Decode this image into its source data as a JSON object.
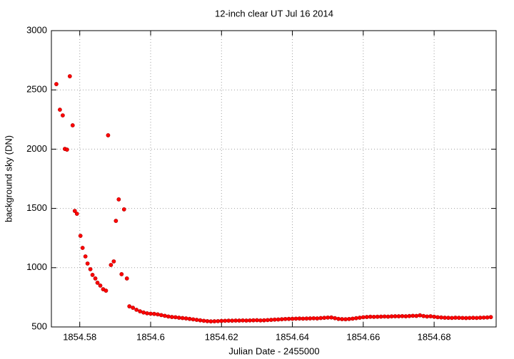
{
  "chart_data": {
    "type": "scatter",
    "title": "12-inch clear UT Jul 16 2014",
    "xlabel": "Julian Date - 2455000",
    "ylabel": "background sky (DN)",
    "color": "#ff0000",
    "grid": true,
    "xlim": [
      1854.572,
      1854.6975
    ],
    "ylim": [
      500,
      3000
    ],
    "xticks": [
      1854.58,
      1854.6,
      1854.62,
      1854.64,
      1854.66,
      1854.68
    ],
    "yticks": [
      500,
      1000,
      1500,
      2000,
      2500,
      3000
    ],
    "x": [
      1854.5734,
      1854.5744,
      1854.5752,
      1854.5758,
      1854.5764,
      1854.5772,
      1854.578,
      1854.5786,
      1854.5792,
      1854.5802,
      1854.5808,
      1854.5816,
      1854.5822,
      1854.583,
      1854.5836,
      1854.5844,
      1854.585,
      1854.5858,
      1854.5866,
      1854.5874,
      1854.588,
      1854.5888,
      1854.5896,
      1854.5902,
      1854.591,
      1854.5918,
      1854.5925,
      1854.5933,
      1854.594,
      1854.595,
      1854.596,
      1854.597,
      1854.598,
      1854.599,
      1854.6,
      1854.601,
      1854.602,
      1854.603,
      1854.604,
      1854.605,
      1854.606,
      1854.607,
      1854.608,
      1854.609,
      1854.61,
      1854.611,
      1854.612,
      1854.613,
      1854.614,
      1854.615,
      1854.616,
      1854.617,
      1854.618,
      1854.619,
      1854.62,
      1854.621,
      1854.622,
      1854.623,
      1854.624,
      1854.625,
      1854.626,
      1854.627,
      1854.628,
      1854.629,
      1854.63,
      1854.631,
      1854.632,
      1854.633,
      1854.634,
      1854.635,
      1854.636,
      1854.637,
      1854.638,
      1854.639,
      1854.64,
      1854.641,
      1854.642,
      1854.643,
      1854.644,
      1854.645,
      1854.646,
      1854.647,
      1854.648,
      1854.649,
      1854.65,
      1854.651,
      1854.652,
      1854.653,
      1854.654,
      1854.655,
      1854.656,
      1854.657,
      1854.658,
      1854.659,
      1854.66,
      1854.661,
      1854.662,
      1854.663,
      1854.664,
      1854.665,
      1854.666,
      1854.667,
      1854.668,
      1854.669,
      1854.67,
      1854.671,
      1854.672,
      1854.673,
      1854.674,
      1854.675,
      1854.676,
      1854.677,
      1854.678,
      1854.679,
      1854.68,
      1854.681,
      1854.682,
      1854.683,
      1854.684,
      1854.685,
      1854.686,
      1854.687,
      1854.688,
      1854.689,
      1854.69,
      1854.691,
      1854.692,
      1854.693,
      1854.694,
      1854.695,
      1854.696
    ],
    "values": [
      2549,
      2333,
      2285,
      2002,
      1996,
      2615,
      2201,
      1479,
      1455,
      1269,
      1167,
      1095,
      1035,
      987,
      939,
      909,
      873,
      849,
      818,
      806,
      2117,
      1023,
      1053,
      1395,
      1576,
      945,
      1492,
      909,
      674,
      662,
      645,
      632,
      622,
      615,
      612,
      610,
      606,
      600,
      594,
      588,
      584,
      582,
      578,
      575,
      572,
      568,
      564,
      560,
      556,
      552,
      549,
      547,
      548,
      549,
      551,
      552,
      553,
      553,
      554,
      554,
      555,
      554,
      555,
      556,
      557,
      555,
      556,
      558,
      560,
      562,
      563,
      565,
      567,
      568,
      569,
      570,
      571,
      570,
      571,
      572,
      573,
      572,
      575,
      577,
      579,
      580,
      574,
      568,
      566,
      565,
      567,
      570,
      574,
      578,
      582,
      584,
      586,
      585,
      586,
      587,
      588,
      587,
      589,
      590,
      590,
      591,
      590,
      592,
      594,
      593,
      598,
      592,
      588,
      590,
      586,
      582,
      580,
      578,
      577,
      576,
      578,
      577,
      576,
      575,
      576,
      577,
      576,
      578,
      579,
      580,
      583
    ]
  }
}
